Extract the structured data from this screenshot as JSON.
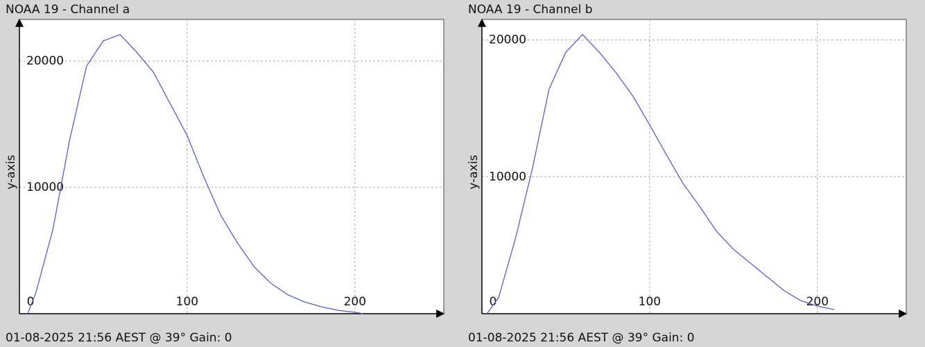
{
  "chart_data": [
    {
      "type": "line",
      "title": "NOAA 19 - Channel a",
      "ylabel": "y-axis",
      "caption": "01-08-2025 21:56 AEST @ 39° Gain: 0",
      "x": [
        5,
        10,
        20,
        30,
        40,
        50,
        60,
        70,
        80,
        90,
        100,
        110,
        120,
        130,
        140,
        150,
        160,
        170,
        180,
        190,
        200,
        205
      ],
      "values": [
        0,
        1750,
        6700,
        13800,
        19600,
        21600,
        22100,
        20700,
        19100,
        16600,
        14100,
        10800,
        7800,
        5600,
        3700,
        2400,
        1500,
        930,
        550,
        270,
        110,
        0
      ],
      "color": "#5a5ad6",
      "xlim": [
        0,
        253
      ],
      "ylim": [
        0,
        23300
      ],
      "xticks": [
        0,
        100,
        200
      ],
      "yticks": [
        10000,
        20000
      ],
      "grid": true
    },
    {
      "type": "line",
      "title": "NOAA 19 - Channel b",
      "ylabel": "y-axis",
      "caption": "01-08-2025 21:56 AEST @ 39° Gain: 0",
      "x": [
        3,
        10,
        20,
        30,
        40,
        50,
        60,
        70,
        80,
        90,
        100,
        110,
        120,
        130,
        140,
        150,
        160,
        170,
        180,
        190,
        200,
        210
      ],
      "values": [
        0,
        1200,
        5500,
        10550,
        16400,
        19100,
        20400,
        19100,
        17600,
        15900,
        13800,
        11600,
        9500,
        7800,
        6000,
        4700,
        3700,
        2700,
        1700,
        960,
        560,
        300
      ],
      "color": "#5a5ad6",
      "xlim": [
        0,
        253
      ],
      "ylim": [
        0,
        21500
      ],
      "xticks": [
        0,
        100,
        200
      ],
      "yticks": [
        10000,
        20000
      ],
      "grid": true
    }
  ]
}
